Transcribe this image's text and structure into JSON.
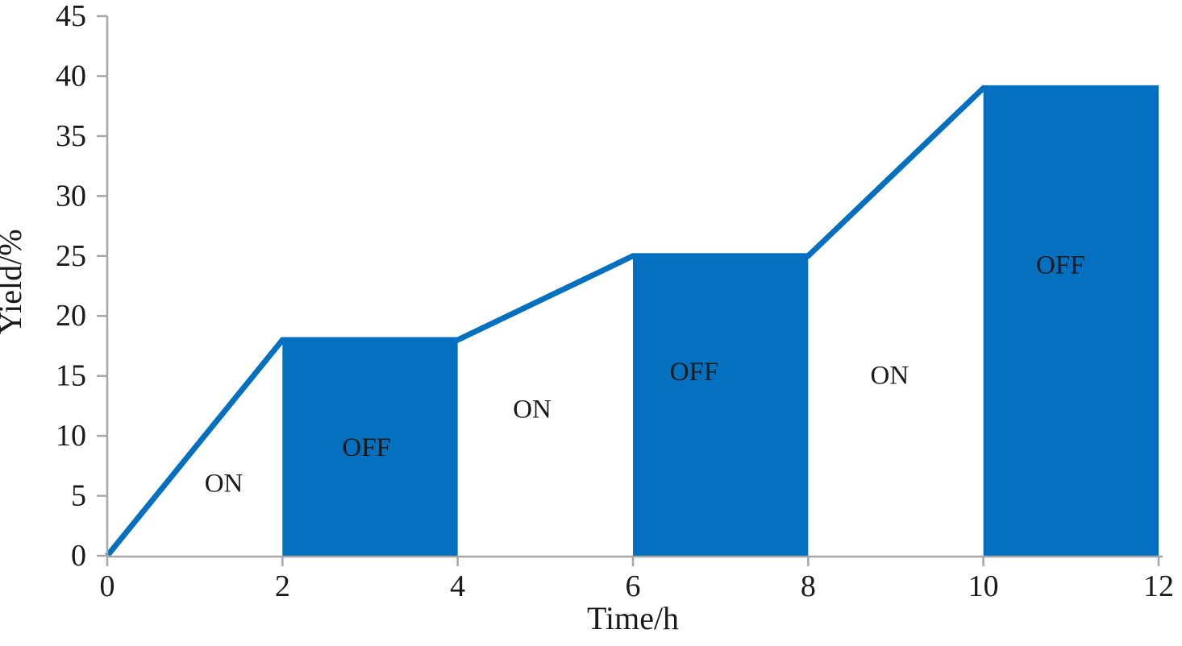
{
  "chart_data": {
    "type": "line",
    "title": "",
    "xlabel": "Time/h",
    "ylabel": "Yield/%",
    "xlim": [
      0,
      12
    ],
    "ylim": [
      0,
      45
    ],
    "xticks": [
      0,
      2,
      4,
      6,
      8,
      10,
      12
    ],
    "yticks": [
      0,
      5,
      10,
      15,
      20,
      25,
      30,
      35,
      40,
      45
    ],
    "grid": false,
    "legend": "none",
    "line_color": "#0570BF",
    "fill_color": "#0570BF",
    "axis_color": "#A6A6A6",
    "text_color": "#1a1a1a",
    "series": [
      {
        "name": "yield",
        "x": [
          0,
          2,
          4,
          6,
          8,
          10,
          12
        ],
        "y": [
          0,
          18,
          18,
          25,
          25,
          39,
          39
        ]
      }
    ],
    "off_intervals": [
      {
        "x_start": 2,
        "x_end": 4,
        "height": 18
      },
      {
        "x_start": 6,
        "x_end": 8,
        "height": 25
      },
      {
        "x_start": 10,
        "x_end": 12,
        "height": 39
      }
    ],
    "annotations": [
      {
        "text": "ON",
        "x": 1.33,
        "y": 6.0
      },
      {
        "text": "OFF",
        "x": 2.96,
        "y": 9.0
      },
      {
        "text": "ON",
        "x": 4.85,
        "y": 12.2
      },
      {
        "text": "OFF",
        "x": 6.7,
        "y": 15.3
      },
      {
        "text": "ON",
        "x": 8.93,
        "y": 15.0
      },
      {
        "text": "OFF",
        "x": 10.88,
        "y": 24.2
      }
    ]
  }
}
